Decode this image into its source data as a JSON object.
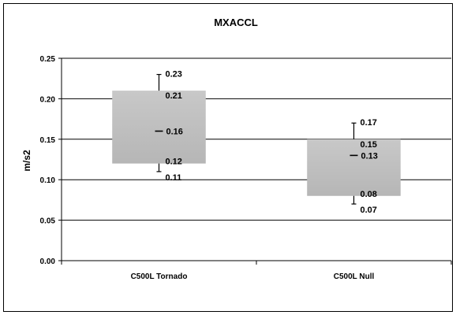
{
  "chart_data": {
    "type": "box",
    "title": "MXACCL",
    "xlabel": "",
    "ylabel": "m/s2",
    "ylim": [
      0,
      0.25
    ],
    "yticks": [
      "0.00",
      "0.05",
      "0.10",
      "0.15",
      "0.20",
      "0.25"
    ],
    "grid": true,
    "categories": [
      "C500L Tornado",
      "C500L Null"
    ],
    "boxes": [
      {
        "category": "C500L Tornado",
        "max": 0.23,
        "q3": 0.21,
        "mean": 0.16,
        "q1": 0.12,
        "min": 0.11,
        "labels": [
          "0.23",
          "0.21",
          "0.16",
          "0.12",
          "0.11"
        ]
      },
      {
        "category": "C500L Null",
        "max": 0.17,
        "q3": 0.15,
        "mean": 0.13,
        "q1": 0.08,
        "min": 0.07,
        "labels": [
          "0.17",
          "0.15",
          "0.13",
          "0.08",
          "0.07"
        ]
      }
    ],
    "colors": {
      "box_fill": "#bfbfbf",
      "grid": "#000000",
      "axis": "#000000"
    }
  }
}
